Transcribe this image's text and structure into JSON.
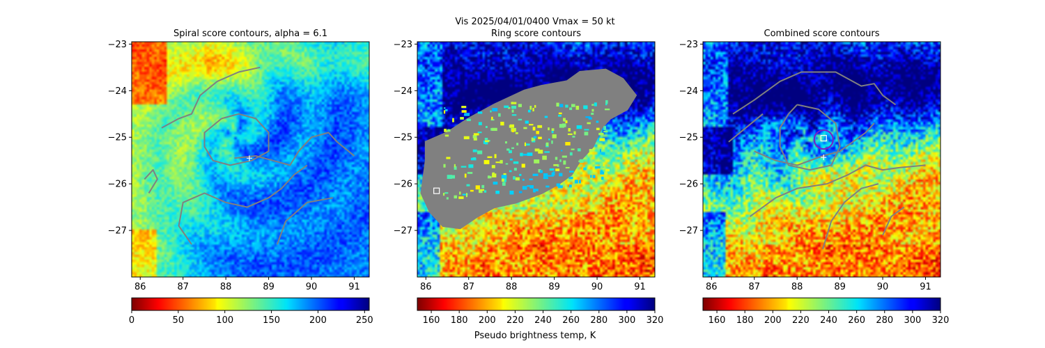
{
  "suptitle": "Vis  2025/04/01/0400    Vmax = 50 kt",
  "colorbar_label": "Pseudo brightness temp, K",
  "chart_data": [
    {
      "type": "heatmap",
      "title": "Spiral score contours, alpha =  6.1",
      "xlim": [
        85.8,
        91.35
      ],
      "ylim": [
        -28.0,
        -22.95
      ],
      "xticks": [
        86,
        87,
        88,
        89,
        90,
        91
      ],
      "yticks": [
        -23,
        -24,
        -25,
        -26,
        -27
      ],
      "colormap": "jet_r",
      "colorbar": {
        "min": 0,
        "max": 255,
        "ticks": [
          0,
          50,
          100,
          150,
          200,
          250
        ]
      },
      "field": {
        "center": [
          88.2,
          -24.95
        ],
        "eye_value": 140,
        "base_value": 160,
        "noise": 40
      },
      "contour_color": "#808080",
      "contours": [
        [
          [
            86.5,
            -24.8
          ],
          [
            86.9,
            -24.6
          ],
          [
            87.2,
            -24.5
          ],
          [
            87.4,
            -24.1
          ],
          [
            87.8,
            -23.8
          ],
          [
            88.3,
            -23.6
          ],
          [
            88.8,
            -23.5
          ]
        ],
        [
          [
            87.9,
            -24.6
          ],
          [
            88.3,
            -24.5
          ],
          [
            88.7,
            -24.6
          ],
          [
            89.0,
            -24.9
          ],
          [
            89.0,
            -25.3
          ],
          [
            88.6,
            -25.5
          ],
          [
            88.1,
            -25.6
          ],
          [
            87.7,
            -25.5
          ],
          [
            87.5,
            -25.2
          ],
          [
            87.5,
            -24.9
          ],
          [
            87.9,
            -24.6
          ]
        ],
        [
          [
            88.2,
            -25.45
          ],
          [
            88.7,
            -25.4
          ],
          [
            89.1,
            -25.5
          ]
        ],
        [
          [
            89.1,
            -25.5
          ],
          [
            89.5,
            -25.6
          ],
          [
            89.7,
            -25.3
          ],
          [
            90.0,
            -25.0
          ],
          [
            90.4,
            -24.9
          ],
          [
            90.6,
            -25.1
          ],
          [
            91.0,
            -25.4
          ]
        ],
        [
          [
            89.9,
            -25.6
          ],
          [
            89.6,
            -25.8
          ],
          [
            89.3,
            -26.1
          ],
          [
            89.0,
            -26.3
          ],
          [
            88.5,
            -26.5
          ],
          [
            88.0,
            -26.4
          ],
          [
            87.5,
            -26.2
          ],
          [
            87.0,
            -26.4
          ],
          [
            86.9,
            -26.9
          ],
          [
            87.2,
            -27.3
          ]
        ],
        [
          [
            89.2,
            -27.3
          ],
          [
            89.4,
            -26.8
          ],
          [
            89.9,
            -26.4
          ],
          [
            90.5,
            -26.3
          ]
        ],
        [
          [
            86.1,
            -25.9
          ],
          [
            86.3,
            -25.7
          ],
          [
            86.4,
            -25.9
          ],
          [
            86.2,
            -26.2
          ]
        ]
      ],
      "markers": [
        {
          "kind": "plus",
          "x": 88.55,
          "y": -25.45,
          "color": "#ffffff"
        }
      ]
    },
    {
      "type": "heatmap",
      "title": "Ring score contours",
      "xlim": [
        85.8,
        91.35
      ],
      "ylim": [
        -28.0,
        -22.95
      ],
      "xticks": [
        86,
        87,
        88,
        89,
        90,
        91
      ],
      "yticks": [
        -23,
        -24,
        -25,
        -26,
        -27
      ],
      "colormap": "jet_r",
      "colorbar": {
        "min": 150,
        "max": 320,
        "ticks": [
          160,
          180,
          200,
          220,
          240,
          260,
          280,
          300,
          320
        ]
      },
      "field": {
        "center": [
          88.2,
          -25.0
        ],
        "eye_value": 205,
        "base_value": 235,
        "noise": 55
      },
      "mask_color": "#808080",
      "mask_polygon": [
        [
          86.0,
          -25.1
        ],
        [
          86.5,
          -24.9
        ],
        [
          87.0,
          -24.6
        ],
        [
          87.6,
          -24.3
        ],
        [
          88.3,
          -24.0
        ],
        [
          88.7,
          -23.9
        ],
        [
          89.3,
          -23.8
        ],
        [
          89.6,
          -23.6
        ],
        [
          90.2,
          -23.55
        ],
        [
          90.6,
          -23.75
        ],
        [
          90.9,
          -24.1
        ],
        [
          90.7,
          -24.4
        ],
        [
          90.3,
          -24.6
        ],
        [
          90.1,
          -24.8
        ],
        [
          89.9,
          -25.2
        ],
        [
          89.6,
          -25.5
        ],
        [
          89.4,
          -25.8
        ],
        [
          89.1,
          -26.0
        ],
        [
          88.7,
          -26.2
        ],
        [
          88.1,
          -26.4
        ],
        [
          87.6,
          -26.5
        ],
        [
          87.2,
          -26.7
        ],
        [
          86.8,
          -26.95
        ],
        [
          86.4,
          -26.9
        ],
        [
          86.1,
          -26.6
        ],
        [
          85.9,
          -26.2
        ],
        [
          86.0,
          -25.5
        ]
      ],
      "markers": [
        {
          "kind": "square",
          "x": 86.25,
          "y": -26.15,
          "color": "#ffffff"
        }
      ]
    },
    {
      "type": "heatmap",
      "title": "Combined score contours",
      "xlim": [
        85.8,
        91.35
      ],
      "ylim": [
        -28.0,
        -22.95
      ],
      "xticks": [
        86,
        87,
        88,
        89,
        90,
        91
      ],
      "yticks": [
        -23,
        -24,
        -25,
        -26,
        -27
      ],
      "colormap": "jet_r",
      "colorbar": {
        "min": 150,
        "max": 320,
        "ticks": [
          160,
          180,
          200,
          220,
          240,
          260,
          280,
          300,
          320
        ]
      },
      "field": {
        "center": [
          88.2,
          -25.0
        ],
        "eye_value": 205,
        "base_value": 235,
        "noise": 55
      },
      "contour_color": "#808080",
      "contours": [
        [
          [
            86.5,
            -24.5
          ],
          [
            87.0,
            -24.2
          ],
          [
            87.6,
            -23.8
          ],
          [
            88.1,
            -23.6
          ],
          [
            88.9,
            -23.6
          ],
          [
            89.5,
            -23.9
          ],
          [
            89.8,
            -23.85
          ],
          [
            90.0,
            -24.1
          ],
          [
            90.3,
            -24.3
          ]
        ],
        [
          [
            88.0,
            -24.3
          ],
          [
            88.5,
            -24.4
          ],
          [
            88.9,
            -24.7
          ],
          [
            89.0,
            -25.2
          ],
          [
            88.8,
            -25.6
          ],
          [
            88.3,
            -25.7
          ],
          [
            87.8,
            -25.6
          ],
          [
            87.6,
            -25.2
          ],
          [
            87.6,
            -24.8
          ],
          [
            87.8,
            -24.5
          ],
          [
            88.0,
            -24.3
          ]
        ],
        [
          [
            87.0,
            -25.3
          ],
          [
            87.5,
            -25.5
          ],
          [
            88.0,
            -25.6
          ],
          [
            88.6,
            -25.4
          ],
          [
            89.0,
            -25.3
          ],
          [
            89.3,
            -25.1
          ],
          [
            89.6,
            -24.9
          ],
          [
            89.8,
            -24.7
          ]
        ],
        [
          [
            86.4,
            -25.1
          ],
          [
            86.8,
            -24.8
          ],
          [
            87.2,
            -24.5
          ]
        ],
        [
          [
            86.9,
            -26.7
          ],
          [
            87.5,
            -26.3
          ],
          [
            88.0,
            -26.1
          ],
          [
            88.7,
            -26.0
          ],
          [
            89.2,
            -25.8
          ],
          [
            89.6,
            -25.6
          ],
          [
            90.0,
            -25.7
          ],
          [
            90.4,
            -25.65
          ],
          [
            91.0,
            -25.6
          ]
        ],
        [
          [
            88.6,
            -27.4
          ],
          [
            88.8,
            -26.8
          ],
          [
            89.1,
            -26.4
          ],
          [
            89.5,
            -26.1
          ],
          [
            89.9,
            -26.0
          ]
        ],
        [
          [
            90.0,
            -27.1
          ],
          [
            90.2,
            -26.7
          ],
          [
            90.5,
            -26.5
          ]
        ]
      ],
      "circle": {
        "x": 88.62,
        "y": -25.05,
        "r": 0.22,
        "color": "#7a1fc2"
      },
      "markers": [
        {
          "kind": "square",
          "x": 88.62,
          "y": -25.02,
          "color": "#ffffff"
        },
        {
          "kind": "plus",
          "x": 88.62,
          "y": -25.43,
          "color": "#ffffff"
        }
      ]
    }
  ]
}
